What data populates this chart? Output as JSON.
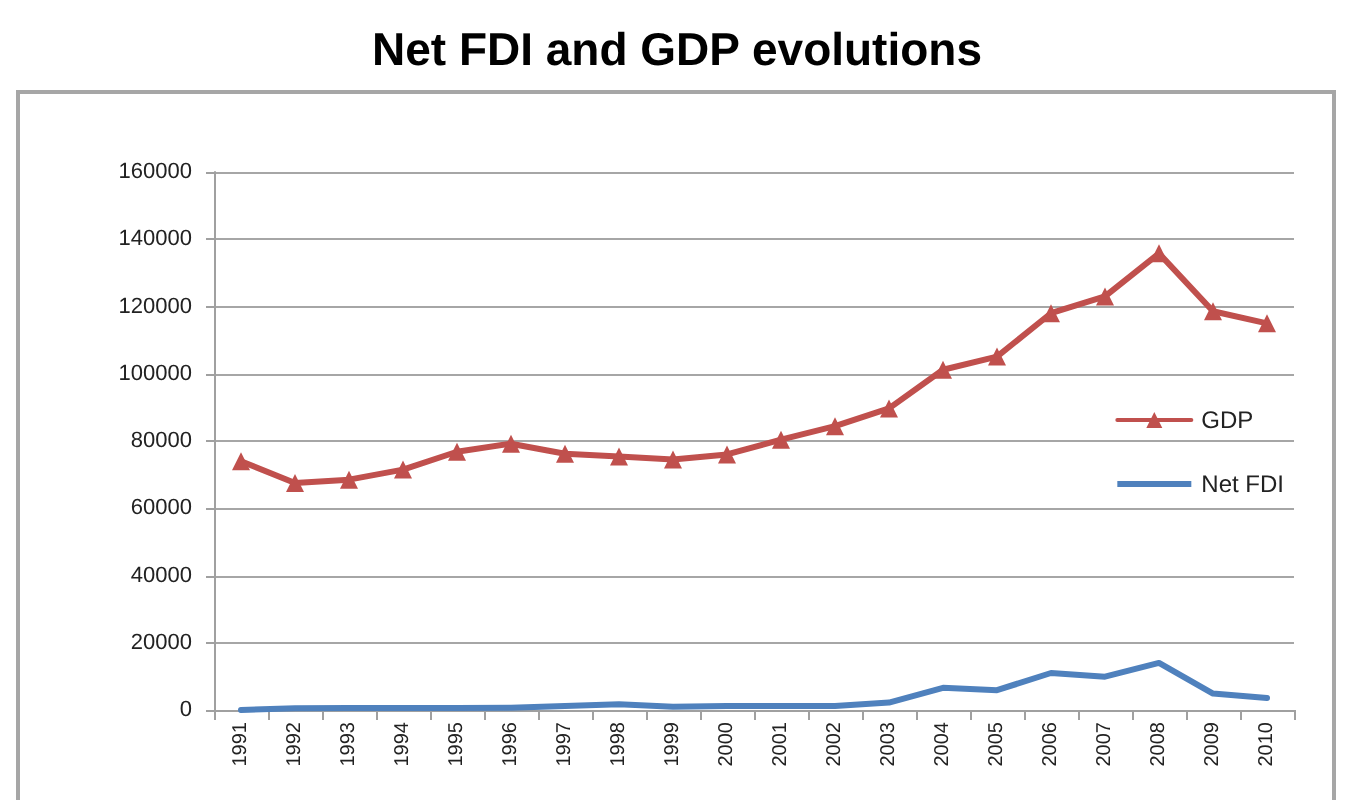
{
  "chart_data": {
    "type": "line",
    "title": "Net FDI and GDP evolutions",
    "categories": [
      "1991",
      "1992",
      "1993",
      "1994",
      "1995",
      "1996",
      "1997",
      "1998",
      "1999",
      "2000",
      "2001",
      "2002",
      "2003",
      "2004",
      "2005",
      "2006",
      "2007",
      "2008",
      "2009",
      "2010"
    ],
    "series": [
      {
        "name": "GDP",
        "color": "#c0504d",
        "marker": "triangle",
        "values": [
          74000,
          67500,
          68500,
          71500,
          76800,
          79200,
          76200,
          75400,
          74500,
          76000,
          80400,
          84400,
          89700,
          101200,
          105100,
          118000,
          123000,
          135800,
          118600,
          115000
        ]
      },
      {
        "name": "Net FDI",
        "color": "#4f81bd",
        "marker": "none",
        "values": [
          0,
          500,
          600,
          600,
          600,
          700,
          1200,
          1700,
          1000,
          1200,
          1200,
          1200,
          2200,
          6600,
          5900,
          11000,
          9900,
          14000,
          4900,
          3600
        ]
      }
    ],
    "ylim": [
      0,
      160000
    ],
    "yticks": [
      0,
      20000,
      40000,
      60000,
      80000,
      100000,
      120000,
      140000,
      160000
    ],
    "grid": "y",
    "legend": "right",
    "line_style": "solid"
  }
}
